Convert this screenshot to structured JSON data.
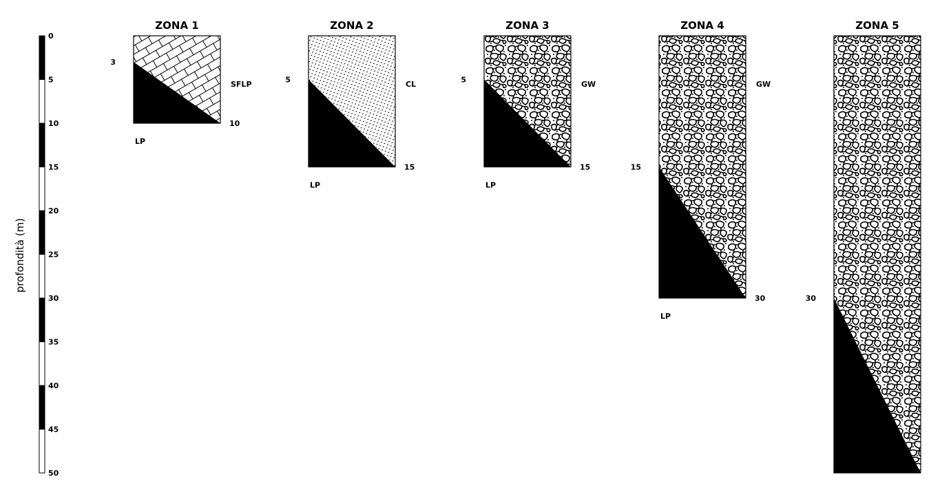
{
  "y_axis": {
    "label": "profondità (m)",
    "min": 0,
    "max": 50,
    "step": 5,
    "ticks": [
      "0",
      "5",
      "10",
      "15",
      "20",
      "25",
      "30",
      "35",
      "40",
      "45",
      "50"
    ]
  },
  "colors": {
    "ink": "#000000",
    "paper": "#ffffff"
  },
  "zones": [
    {
      "title": "ZONA 1",
      "top_depth_label": "3",
      "bottom_depth_label": "10",
      "top_layer_code": "SFLP",
      "bottom_layer_code": "LP",
      "pattern": "brick",
      "transition_depth": 3,
      "bottom_depth": 10
    },
    {
      "title": "ZONA 2",
      "top_depth_label": "5",
      "bottom_depth_label": "15",
      "top_layer_code": "CL",
      "bottom_layer_code": "LP",
      "pattern": "dots",
      "transition_depth": 5,
      "bottom_depth": 15
    },
    {
      "title": "ZONA 3",
      "top_depth_label": "5",
      "bottom_depth_label": "15",
      "top_layer_code": "GW",
      "bottom_layer_code": "LP",
      "pattern": "gravel",
      "transition_depth": 5,
      "bottom_depth": 15
    },
    {
      "title": "ZONA 4",
      "top_depth_label": "15",
      "bottom_depth_label": "30",
      "top_layer_code": "GW",
      "bottom_layer_code": "LP",
      "pattern": "gravel",
      "transition_depth": 15,
      "bottom_depth": 30
    },
    {
      "title": "ZONA 5",
      "top_depth_label": "30",
      "bottom_depth_label": "",
      "top_layer_code": "",
      "bottom_layer_code": "",
      "pattern": "gravel",
      "transition_depth": 30,
      "bottom_depth": 50
    }
  ]
}
